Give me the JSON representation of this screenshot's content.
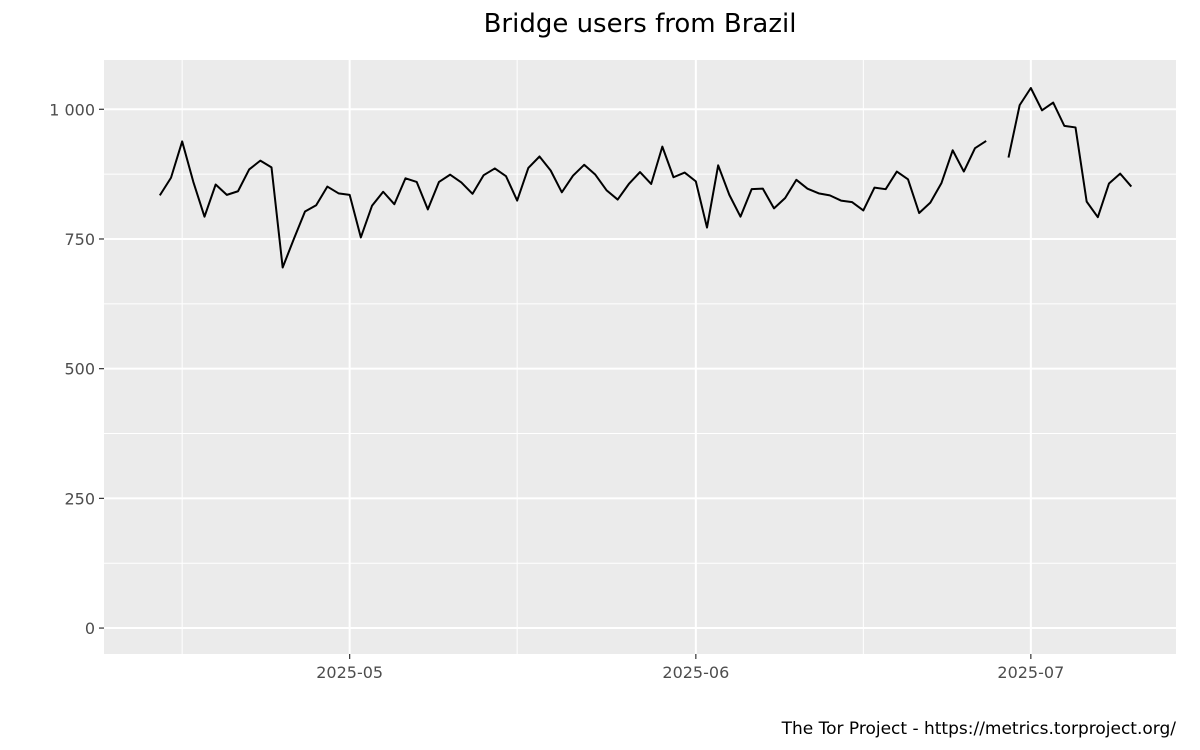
{
  "chart_data": {
    "type": "line",
    "title": "Bridge users from Brazil",
    "caption": "The Tor Project - https://metrics.torproject.org/",
    "xlabel": "",
    "ylabel": "",
    "ylim": [
      -50,
      1095
    ],
    "xlim": [
      "2025-04-09",
      "2025-07-14"
    ],
    "y_ticks": [
      {
        "value": 0,
        "label": "0"
      },
      {
        "value": 250,
        "label": "250"
      },
      {
        "value": 500,
        "label": "500"
      },
      {
        "value": 750,
        "label": "750"
      },
      {
        "value": 1000,
        "label": "1 000"
      }
    ],
    "x_ticks": [
      {
        "value": "2025-05-01",
        "label": "2025-05"
      },
      {
        "value": "2025-06-01",
        "label": "2025-06"
      },
      {
        "value": "2025-07-01",
        "label": "2025-07"
      }
    ],
    "x_minor_ticks": [
      "2025-04-16",
      "2025-05-16",
      "2025-06-16",
      "2025-07-16"
    ],
    "grid": true,
    "line_color": "#000000",
    "panel_color": "#ebebeb",
    "grid_color": "#ffffff",
    "series": [
      {
        "dates": [
          "2025-04-14",
          "2025-04-15",
          "2025-04-16",
          "2025-04-17",
          "2025-04-18",
          "2025-04-19",
          "2025-04-20",
          "2025-04-21",
          "2025-04-22",
          "2025-04-23",
          "2025-04-24",
          "2025-04-25",
          "2025-04-26",
          "2025-04-27",
          "2025-04-28",
          "2025-04-29",
          "2025-04-30",
          "2025-05-01",
          "2025-05-02",
          "2025-05-03",
          "2025-05-04",
          "2025-05-05",
          "2025-05-06",
          "2025-05-07",
          "2025-05-08",
          "2025-05-09",
          "2025-05-10",
          "2025-05-11",
          "2025-05-12",
          "2025-05-13",
          "2025-05-14",
          "2025-05-15",
          "2025-05-16",
          "2025-05-17",
          "2025-05-18",
          "2025-05-19",
          "2025-05-20",
          "2025-05-21",
          "2025-05-22",
          "2025-05-23",
          "2025-05-24",
          "2025-05-25",
          "2025-05-26",
          "2025-05-27",
          "2025-05-28",
          "2025-05-29",
          "2025-05-30",
          "2025-05-31",
          "2025-06-01",
          "2025-06-02",
          "2025-06-03",
          "2025-06-04",
          "2025-06-05",
          "2025-06-06",
          "2025-06-07",
          "2025-06-08",
          "2025-06-09",
          "2025-06-10",
          "2025-06-11",
          "2025-06-12",
          "2025-06-13",
          "2025-06-14",
          "2025-06-15",
          "2025-06-16",
          "2025-06-17",
          "2025-06-18",
          "2025-06-19",
          "2025-06-20",
          "2025-06-21",
          "2025-06-22",
          "2025-06-23",
          "2025-06-24",
          "2025-06-25",
          "2025-06-26",
          "2025-06-27",
          "2025-06-28",
          "2025-06-29",
          "2025-06-30",
          "2025-07-01",
          "2025-07-02",
          "2025-07-03",
          "2025-07-04",
          "2025-07-05",
          "2025-07-06",
          "2025-07-07",
          "2025-07-08",
          "2025-07-09",
          "2025-07-10"
        ],
        "values": [
          834,
          868,
          938,
          860,
          793,
          855,
          835,
          842,
          884,
          901,
          888,
          695,
          750,
          803,
          815,
          851,
          838,
          835,
          753,
          814,
          841,
          817,
          867,
          860,
          807,
          860,
          874,
          859,
          837,
          873,
          886,
          871,
          824,
          887,
          909,
          882,
          840,
          872,
          893,
          874,
          844,
          826,
          856,
          879,
          856,
          928,
          869,
          878,
          861,
          772,
          892,
          835,
          793,
          846,
          847,
          809,
          829,
          864,
          847,
          838,
          834,
          824,
          821,
          805,
          849,
          846,
          880,
          865,
          800,
          820,
          858,
          921,
          880,
          925,
          939,
          null,
          907,
          1008,
          1041,
          998,
          1013,
          968,
          965,
          822,
          792,
          857,
          876,
          851
        ]
      }
    ]
  }
}
